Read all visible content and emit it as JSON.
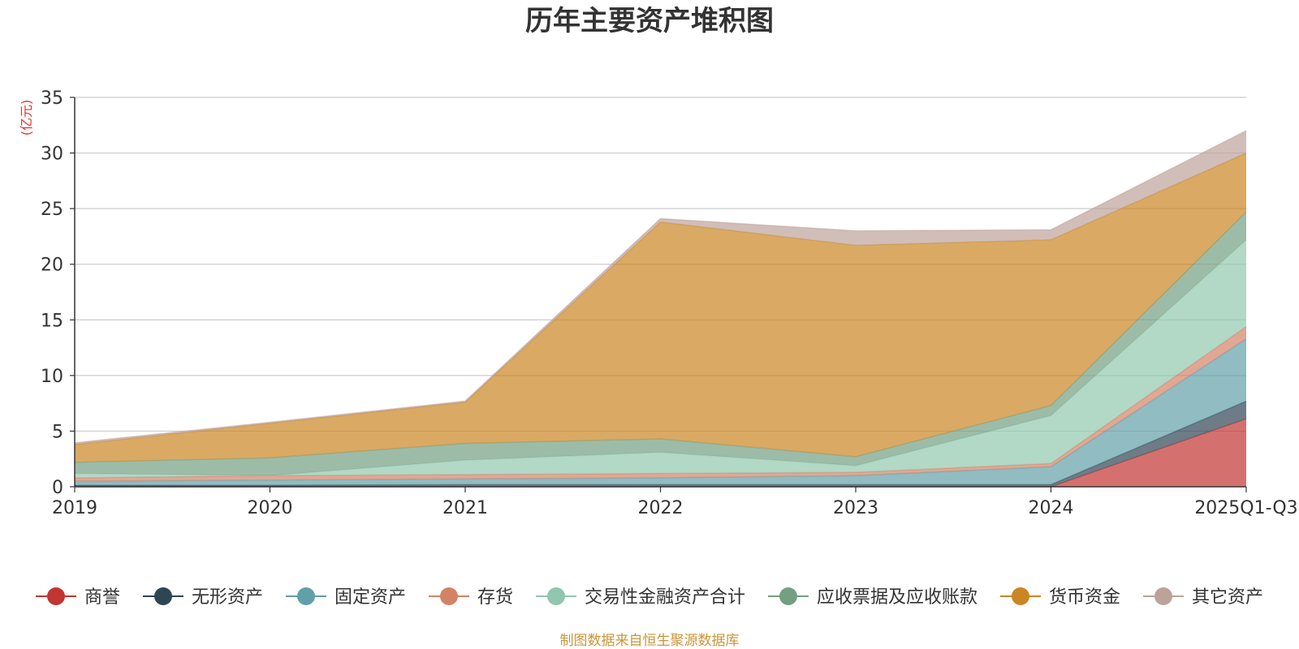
{
  "chart_data": {
    "type": "area",
    "stacked": true,
    "title": "历年主要资产堆积图",
    "ylabel": "(亿元)",
    "xlabel": "",
    "ylim": [
      0,
      35
    ],
    "yticks": [
      0,
      5,
      10,
      15,
      20,
      25,
      30,
      35
    ],
    "grid": true,
    "legend_position": "bottom",
    "categories": [
      "2019",
      "2020",
      "2021",
      "2022",
      "2023",
      "2024",
      "2025Q1-Q3"
    ],
    "series": [
      {
        "name": "商誉",
        "color": "#c23531",
        "values": [
          0,
          0,
          0,
          0,
          0,
          0,
          6.1
        ]
      },
      {
        "name": "无形资产",
        "color": "#2f4554",
        "values": [
          0.15,
          0.15,
          0.2,
          0.2,
          0.2,
          0.2,
          1.6
        ]
      },
      {
        "name": "固定资产",
        "color": "#61a0a8",
        "values": [
          0.35,
          0.45,
          0.5,
          0.6,
          0.8,
          1.6,
          5.6
        ]
      },
      {
        "name": "存货",
        "color": "#d48265",
        "values": [
          0.3,
          0.4,
          0.4,
          0.4,
          0.3,
          0.3,
          1.1
        ]
      },
      {
        "name": "交易性金融资产合计",
        "color": "#91c7ae",
        "values": [
          0.4,
          0,
          1.3,
          1.9,
          0.6,
          4.3,
          7.8
        ]
      },
      {
        "name": "应收票据及应收账款",
        "color": "#749f83",
        "values": [
          1.0,
          1.6,
          1.5,
          1.2,
          0.8,
          0.9,
          2.5
        ]
      },
      {
        "name": "货币资金",
        "color": "#ca8622",
        "values": [
          1.6,
          3.1,
          3.7,
          19.5,
          19.0,
          14.9,
          5.3
        ]
      },
      {
        "name": "其它资产",
        "color": "#bda29a",
        "values": [
          0.15,
          0.1,
          0.1,
          0.3,
          1.3,
          0.9,
          2.0
        ]
      }
    ],
    "source_note": "制图数据来自恒生聚源数据库"
  }
}
